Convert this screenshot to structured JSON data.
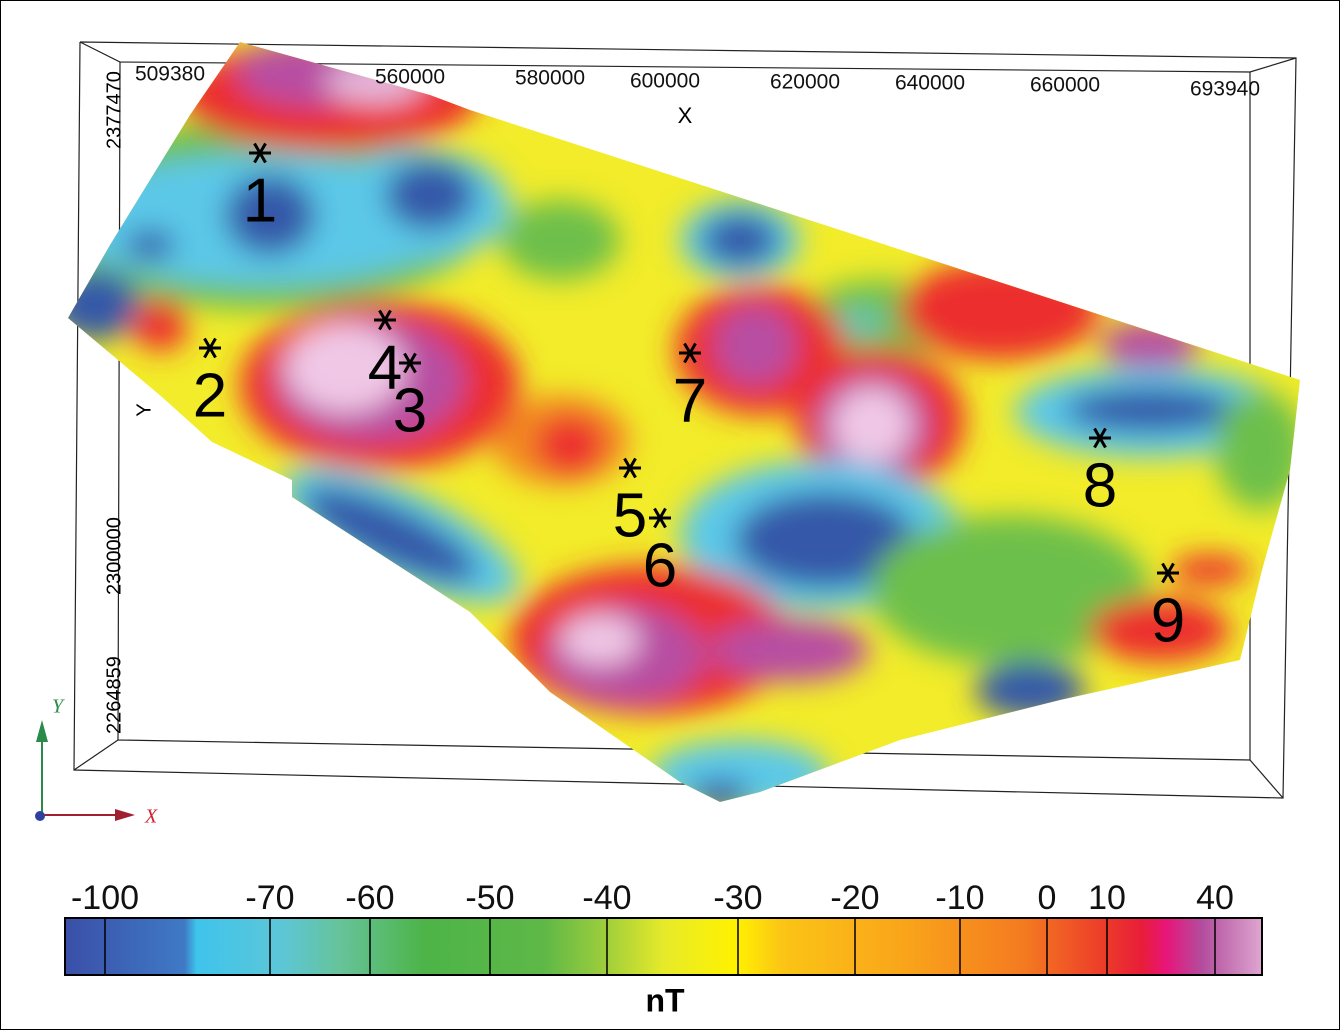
{
  "axes": {
    "x_label": "X",
    "x_ticks": [
      509380,
      560000,
      580000,
      600000,
      620000,
      640000,
      660000,
      693940
    ],
    "y_label": "Y",
    "y_ticks": [
      2377470,
      2300000,
      2264859
    ]
  },
  "stations": [
    "1",
    "2",
    "3",
    "4",
    "5",
    "6",
    "7",
    "8",
    "9"
  ],
  "triad": {
    "x": "X",
    "y": "Y"
  },
  "colorbar": {
    "ticks": [
      -100,
      -70,
      -60,
      -50,
      -40,
      -30,
      -20,
      -10,
      0,
      10,
      40
    ],
    "unit": "nT"
  }
}
